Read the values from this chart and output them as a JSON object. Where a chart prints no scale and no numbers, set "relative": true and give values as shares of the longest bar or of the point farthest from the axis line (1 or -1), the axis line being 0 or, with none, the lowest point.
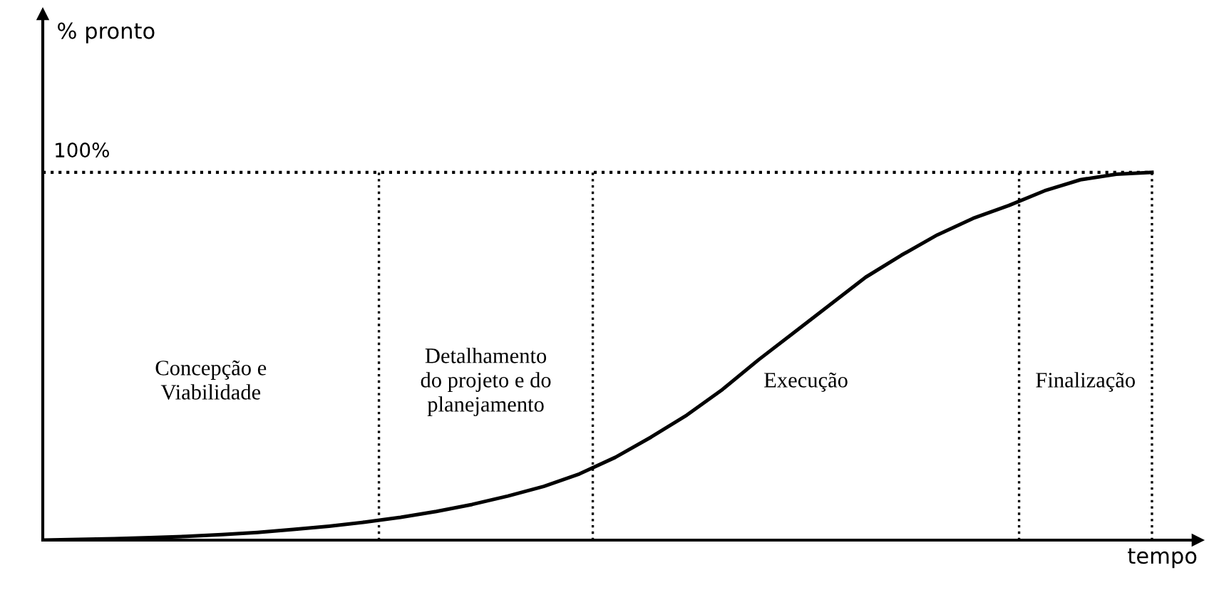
{
  "chart_data": {
    "type": "line",
    "relative": true,
    "xlabel": "tempo",
    "categories": [
      null,
      null,
      null,
      null,
      null,
      null,
      null,
      null,
      null,
      null,
      null,
      null,
      null,
      null,
      null,
      null,
      null,
      null,
      null,
      null,
      null,
      null,
      null,
      null,
      null,
      null,
      null,
      null,
      null,
      null,
      null,
      null
    ],
    "series": [
      {
        "color": "#000000",
        "values": [
          0,
          0.002,
          0.004,
          0.007,
          0.01,
          0.015,
          0.021,
          0.029,
          0.038,
          0.049,
          0.062,
          0.078,
          0.097,
          0.12,
          0.146,
          0.18,
          0.225,
          0.28,
          0.34,
          0.41,
          0.49,
          0.565,
          0.64,
          0.715,
          0.775,
          0.83,
          0.875,
          0.91,
          0.95,
          0.98,
          0.995,
          1.0
        ]
      }
    ],
    "ref_lines": [
      {
        "axis": "y",
        "value": 1,
        "label": "100%",
        "color": "#000000",
        "line_style": "dotted"
      }
    ],
    "annotations": [
      "% pronto",
      "Concepção e\nViabilidade",
      "Detalhamento\ndo projeto e do\nplanejamento",
      "Execução",
      "Finalização"
    ],
    "grid": false,
    "marker": "none",
    "line_style": "solid"
  }
}
